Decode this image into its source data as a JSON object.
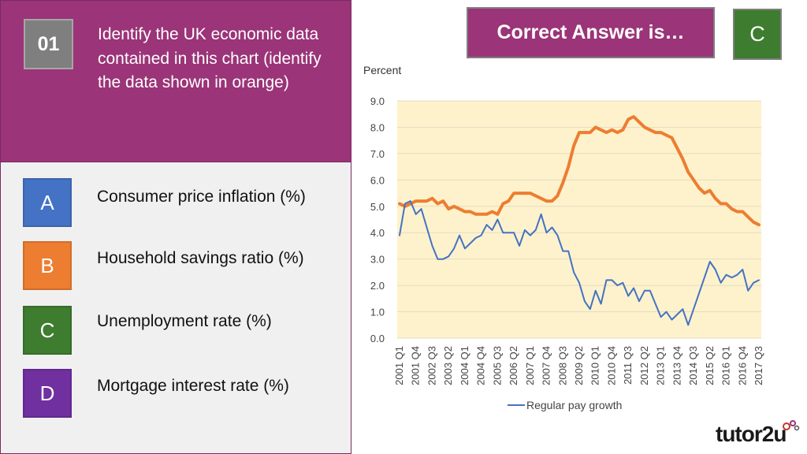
{
  "question": {
    "number": "01",
    "text": "Identify the UK economic data contained in this chart (identify the data shown in orange)"
  },
  "options": [
    {
      "letter": "A",
      "label": "Consumer price inflation (%)",
      "color": "#4472c4"
    },
    {
      "letter": "B",
      "label": "Household savings ratio (%)",
      "color": "#ed7d31"
    },
    {
      "letter": "C",
      "label": "Unemployment rate (%)",
      "color": "#3e7c2f"
    },
    {
      "letter": "D",
      "label": "Mortgage interest rate (%)",
      "color": "#7030a0"
    }
  ],
  "answer": {
    "banner": "Correct Answer is…",
    "letter": "C"
  },
  "logo": {
    "text": "tutor2u"
  },
  "chart_data": {
    "type": "line",
    "ylabel": "Percent",
    "ylim": [
      0,
      9
    ],
    "yticks": [
      "0.0",
      "1.0",
      "2.0",
      "3.0",
      "4.0",
      "5.0",
      "6.0",
      "7.0",
      "8.0",
      "9.0"
    ],
    "x_tick_labels": [
      "2001 Q1",
      "2001 Q4",
      "2002 Q3",
      "2003 Q2",
      "2004 Q1",
      "2004 Q4",
      "2005 Q3",
      "2006 Q2",
      "2007 Q1",
      "2007 Q4",
      "2008 Q3",
      "2009 Q2",
      "2010 Q1",
      "2010 Q4",
      "2011 Q3",
      "2012 Q2",
      "2013 Q1",
      "2013 Q4",
      "2014 Q3",
      "2015 Q2",
      "2016 Q1",
      "2016 Q4",
      "2017 Q3"
    ],
    "x_start": "2001 Q1",
    "x_end": "2017 Q3",
    "plot_background": "#fdf2cc",
    "legend_position": "bottom",
    "series": [
      {
        "name": "",
        "color": "#ed7d31",
        "values": [
          5.1,
          5.0,
          5.1,
          5.2,
          5.2,
          5.2,
          5.3,
          5.1,
          5.2,
          4.9,
          5.0,
          4.9,
          4.8,
          4.8,
          4.7,
          4.7,
          4.7,
          4.8,
          4.7,
          5.1,
          5.2,
          5.5,
          5.5,
          5.5,
          5.5,
          5.4,
          5.3,
          5.2,
          5.2,
          5.4,
          5.9,
          6.5,
          7.3,
          7.8,
          7.8,
          7.8,
          8.0,
          7.9,
          7.8,
          7.9,
          7.8,
          7.9,
          8.3,
          8.4,
          8.2,
          8.0,
          7.9,
          7.8,
          7.8,
          7.7,
          7.6,
          7.2,
          6.8,
          6.3,
          6.0,
          5.7,
          5.5,
          5.6,
          5.3,
          5.1,
          5.1,
          4.9,
          4.8,
          4.8,
          4.6,
          4.4,
          4.3
        ]
      },
      {
        "name": "Regular pay growth",
        "color": "#4472c4",
        "values": [
          3.9,
          5.1,
          5.2,
          4.7,
          4.9,
          4.2,
          3.5,
          3.0,
          3.0,
          3.1,
          3.4,
          3.9,
          3.4,
          3.6,
          3.8,
          3.9,
          4.3,
          4.1,
          4.5,
          4.0,
          4.0,
          4.0,
          3.5,
          4.1,
          3.9,
          4.1,
          4.7,
          4.0,
          4.2,
          3.9,
          3.3,
          3.3,
          2.5,
          2.1,
          1.4,
          1.1,
          1.8,
          1.3,
          2.2,
          2.2,
          2.0,
          2.1,
          1.6,
          1.9,
          1.4,
          1.8,
          1.8,
          1.3,
          0.8,
          1.0,
          0.7,
          0.9,
          1.1,
          0.5,
          1.1,
          1.7,
          2.3,
          2.9,
          2.6,
          2.1,
          2.4,
          2.3,
          2.4,
          2.6,
          1.8,
          2.1,
          2.2
        ]
      }
    ]
  }
}
